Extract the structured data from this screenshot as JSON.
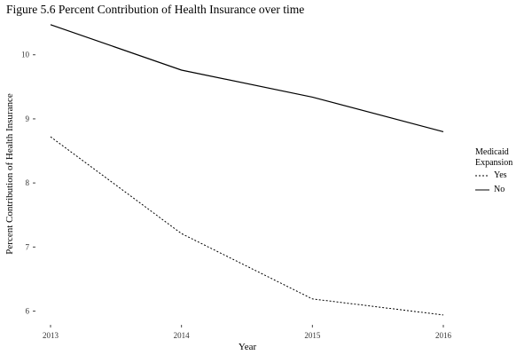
{
  "chart_data": {
    "type": "line",
    "title": "Figure 5.6 Percent Contribution of Health Insurance over time",
    "xlabel": "Year",
    "ylabel": "Percent Contribution of Health Insurance",
    "x": [
      "2013",
      "2014",
      "2015",
      "2016"
    ],
    "yticks": [
      "6",
      "7",
      "8",
      "9",
      "10"
    ],
    "ylim": [
      5.8,
      10.55
    ],
    "grid": false,
    "legend": {
      "title": "Medicaid Expansion",
      "position": "right"
    },
    "series": [
      {
        "name": "Yes",
        "style": "dotted",
        "values": [
          8.72,
          7.21,
          6.19,
          5.94
        ]
      },
      {
        "name": "No",
        "style": "solid",
        "values": [
          10.47,
          9.76,
          9.34,
          8.8
        ]
      }
    ]
  }
}
